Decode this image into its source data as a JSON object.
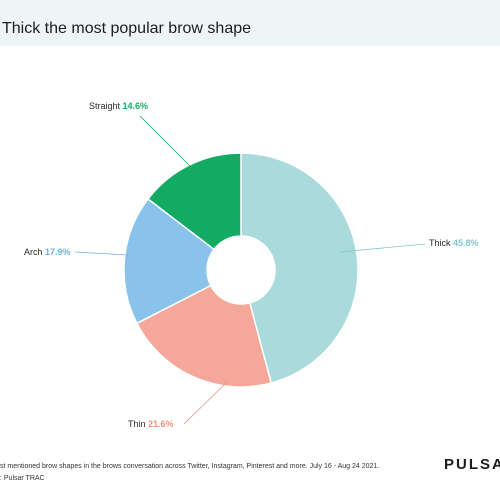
{
  "header": {
    "title": "Thick the most popular brow shape"
  },
  "footer": {
    "note_line1": "st mentioned brow shapes in the brows conversation across Twitter, Instagram, Pinterest and more. July 16 - Aug 24 2021.",
    "note_line2": ": Pulsar TRAC",
    "logo_text": "PULSAR"
  },
  "chart_data": {
    "type": "pie",
    "title": "Thick the most popular brow shape",
    "donut": true,
    "slices": [
      {
        "label": "Thick",
        "value": 45.8,
        "pct_text": "45.8%",
        "color": "#aadbdc",
        "pct_color": "#7fc6c8"
      },
      {
        "label": "Thin",
        "value": 21.6,
        "pct_text": "21.6%",
        "color": "#f5a899",
        "pct_color": "#f0917e"
      },
      {
        "label": "Arch",
        "value": 17.9,
        "pct_text": "17.9%",
        "color": "#89c3ec",
        "pct_color": "#6cb2e6"
      },
      {
        "label": "Straight",
        "value": 14.6,
        "pct_text": "14.6%",
        "color": "#13ab63",
        "pct_color": "#13ab63"
      }
    ],
    "legend": "none"
  }
}
